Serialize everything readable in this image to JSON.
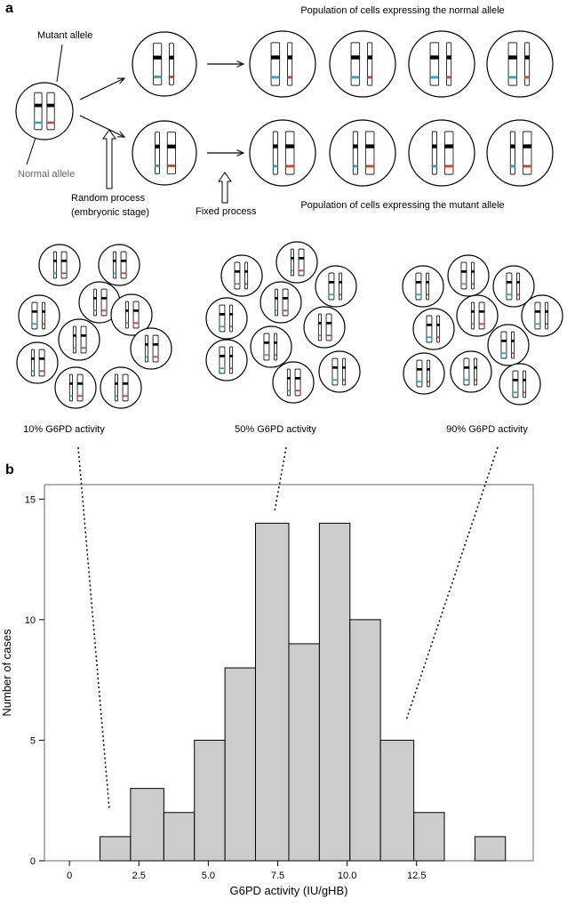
{
  "panel_a": {
    "label": "a",
    "mutant_allele": "Mutant allele",
    "normal_allele": "Normal allele",
    "population_normal": "Population of cells expressing the normal allele",
    "population_mutant": "Population of cells expressing the mutant allele",
    "random_process": [
      "Random process",
      "(embryonic stage)"
    ],
    "fixed_process": "Fixed process",
    "activity_labels": [
      "10% G6PD activity",
      "50% G6PD activity",
      "90% G6PD activity"
    ]
  },
  "chart_data": {
    "type": "histogram",
    "panel_label": "b",
    "xlabel": "G6PD activity (IU/gHB)",
    "ylabel": "Number of cases",
    "bins": [
      1.1,
      2.2,
      3.4,
      4.5,
      5.6,
      6.7,
      7.9,
      9.0,
      10.1,
      11.2,
      12.4,
      13.5,
      14.6,
      15.7
    ],
    "counts": [
      1,
      3,
      2,
      5,
      8,
      14,
      9,
      14,
      10,
      5,
      2,
      0,
      1
    ],
    "color": "#cccccc",
    "xlim": [
      -0.9,
      16.7
    ],
    "ylim": [
      0,
      15.6
    ],
    "xticks": [
      0,
      2.5,
      {
        "value": 5,
        "label": "5.0"
      },
      7.5,
      {
        "value": 10,
        "label": "10.0"
      },
      12.5
    ],
    "yticks": [
      0,
      5,
      10,
      15
    ]
  }
}
